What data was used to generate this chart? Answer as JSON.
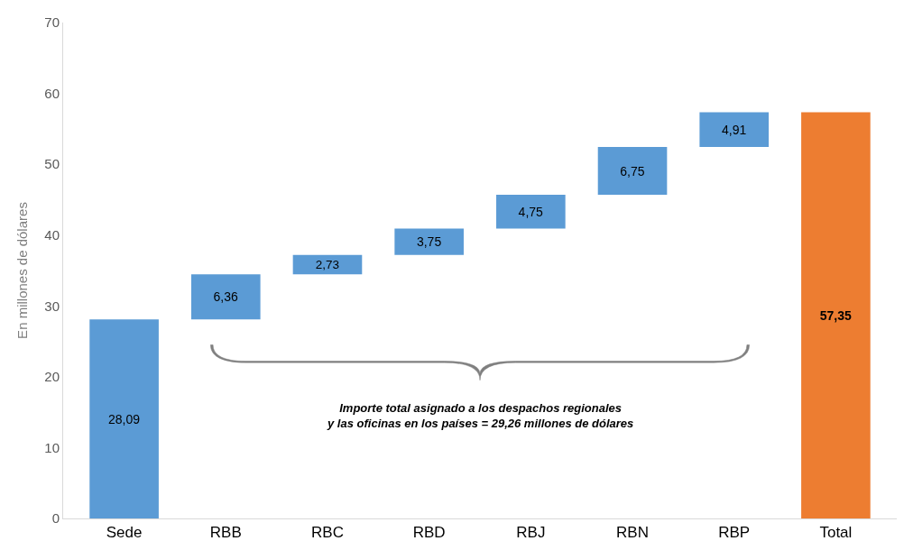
{
  "chart_data": {
    "type": "bar",
    "ylabel": "En millones de dólares",
    "categories": [
      "Sede",
      "RBB",
      "RBC",
      "RBD",
      "RBJ",
      "RBN",
      "RBP",
      "Total"
    ],
    "values": [
      28.09,
      6.36,
      2.73,
      3.75,
      4.75,
      6.75,
      4.91,
      57.35
    ],
    "base": [
      0,
      28.09,
      34.45,
      37.18,
      40.93,
      45.68,
      52.43,
      0
    ],
    "colors": [
      "#5b9bd5",
      "#5b9bd5",
      "#5b9bd5",
      "#5b9bd5",
      "#5b9bd5",
      "#5b9bd5",
      "#5b9bd5",
      "#ed7d31"
    ],
    "value_labels": [
      "28,09",
      "6,36",
      "2,73",
      "3,75",
      "4,75",
      "6,75",
      "4,91",
      "57,35"
    ],
    "ylim": [
      0,
      70
    ],
    "yticks": [
      0,
      10,
      20,
      30,
      40,
      50,
      60,
      70
    ],
    "annotations": [
      "Importe total asignado a los despachos regionales\ny las oficinas en los países = 29,26 millones de dólares"
    ]
  }
}
